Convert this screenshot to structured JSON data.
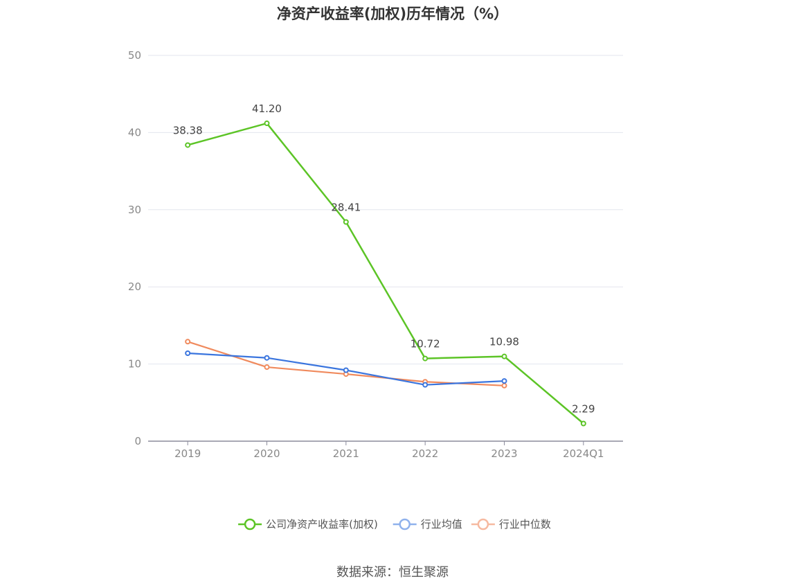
{
  "chart_data": {
    "type": "line",
    "title": "净资产收益率(加权)历年情况（%）",
    "categories": [
      "2019",
      "2020",
      "2021",
      "2022",
      "2023",
      "2024Q1"
    ],
    "ylim": [
      0,
      50
    ],
    "yticks": [
      0,
      10,
      20,
      30,
      40,
      50
    ],
    "grid": true,
    "legend_position": "bottom-center",
    "series": [
      {
        "name": "公司净资产收益率(加权)",
        "color": "#5cc426",
        "values": [
          38.38,
          41.2,
          28.41,
          10.72,
          10.98,
          2.29
        ],
        "data_labels": [
          "38.38",
          "41.20",
          "28.41",
          "10.72",
          "10.98",
          "2.29"
        ]
      },
      {
        "name": "行业均值",
        "color": "#3a75de",
        "legend_color": "#8fb1ec",
        "values": [
          11.4,
          10.8,
          9.2,
          7.3,
          7.8,
          null
        ]
      },
      {
        "name": "行业中位数",
        "color": "#f08a5d",
        "legend_color": "#f6b9a0",
        "values": [
          12.9,
          9.6,
          8.7,
          7.7,
          7.2,
          null
        ]
      }
    ],
    "source": "数据来源：恒生聚源"
  }
}
